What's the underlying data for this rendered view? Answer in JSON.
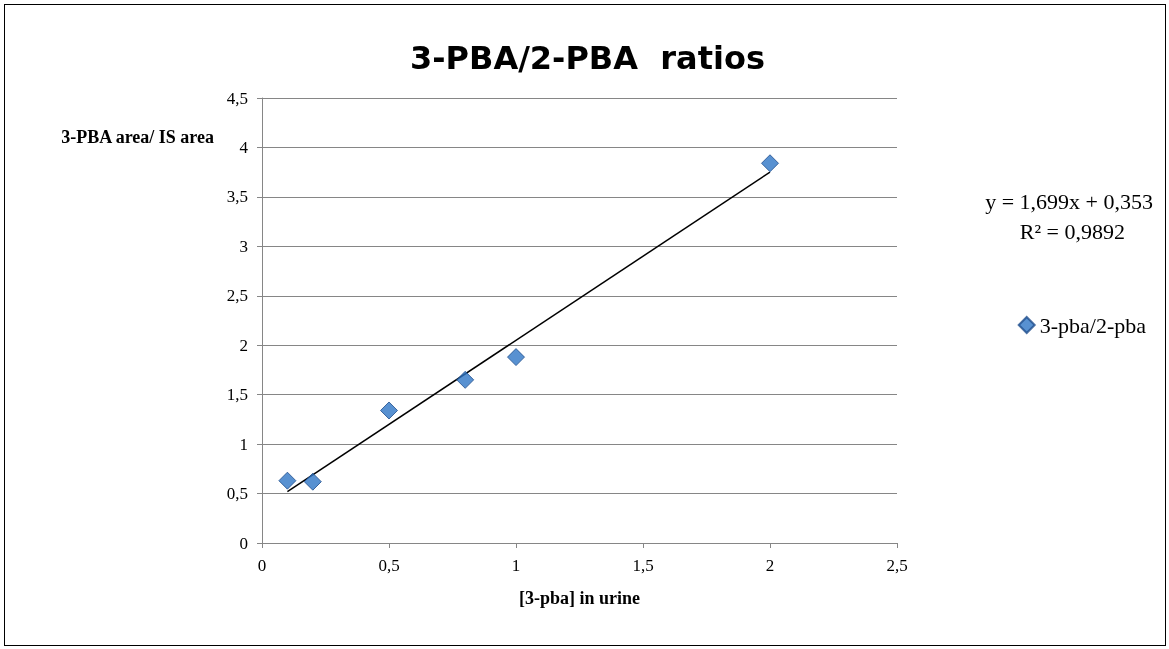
{
  "chart_data": {
    "type": "scatter",
    "title": "3-PBA/2-PBA  ratios",
    "xlabel": "[3-pba] in urine",
    "ylabel": "3-PBA area/ IS area",
    "annotations": [
      "y = 1,699x + 0,353",
      "R² = 0,9892"
    ],
    "x": [
      0.1,
      0.2,
      0.5,
      0.8,
      1.0,
      2.0
    ],
    "series": [
      {
        "name": "3-pba/2-pba",
        "color": "#2e75c6",
        "values": [
          0.63,
          0.62,
          1.34,
          1.65,
          1.88,
          3.84
        ],
        "marker": "diamond"
      },
      {
        "type": "line",
        "color": "#000000",
        "x": [
          0.1,
          2.0
        ],
        "values": [
          0.52,
          3.75
        ],
        "marker": "none",
        "line_style": "solid"
      }
    ],
    "xlim": [
      0,
      2.5
    ],
    "ylim": [
      0,
      4.5
    ],
    "xticks": [
      0,
      {
        "value": 0.5,
        "label": "0,5"
      },
      1,
      {
        "value": 1.5,
        "label": "1,5"
      },
      2,
      {
        "value": 2.5,
        "label": "2,5"
      }
    ],
    "yticks": [
      0,
      {
        "value": 0.5,
        "label": "0,5"
      },
      1,
      {
        "value": 1.5,
        "label": "1,5"
      },
      2,
      {
        "value": 2.5,
        "label": "2,5"
      },
      3,
      {
        "value": 3.5,
        "label": "3,5"
      },
      4,
      {
        "value": 4.5,
        "label": "4,5"
      }
    ],
    "grid": "y",
    "legend": "right"
  }
}
